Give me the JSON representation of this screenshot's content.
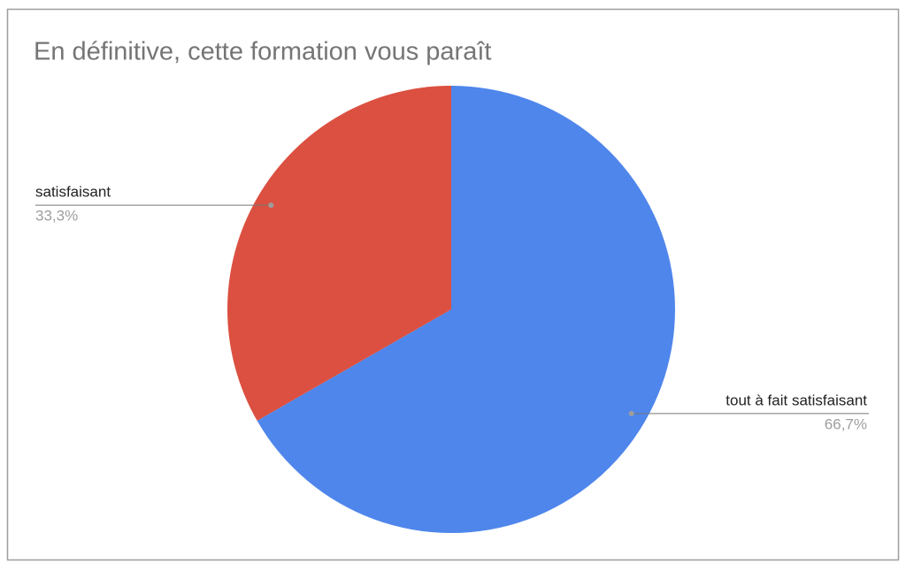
{
  "chart_data": {
    "type": "pie",
    "title": "En définitive, cette formation vous paraît",
    "categories": [
      "tout à fait satisfaisant",
      "satisfaisant"
    ],
    "values": [
      66.7,
      33.3
    ],
    "value_labels": [
      "66,7%",
      "33,3%"
    ],
    "colors": [
      "#4f86ec",
      "#db5040"
    ]
  }
}
